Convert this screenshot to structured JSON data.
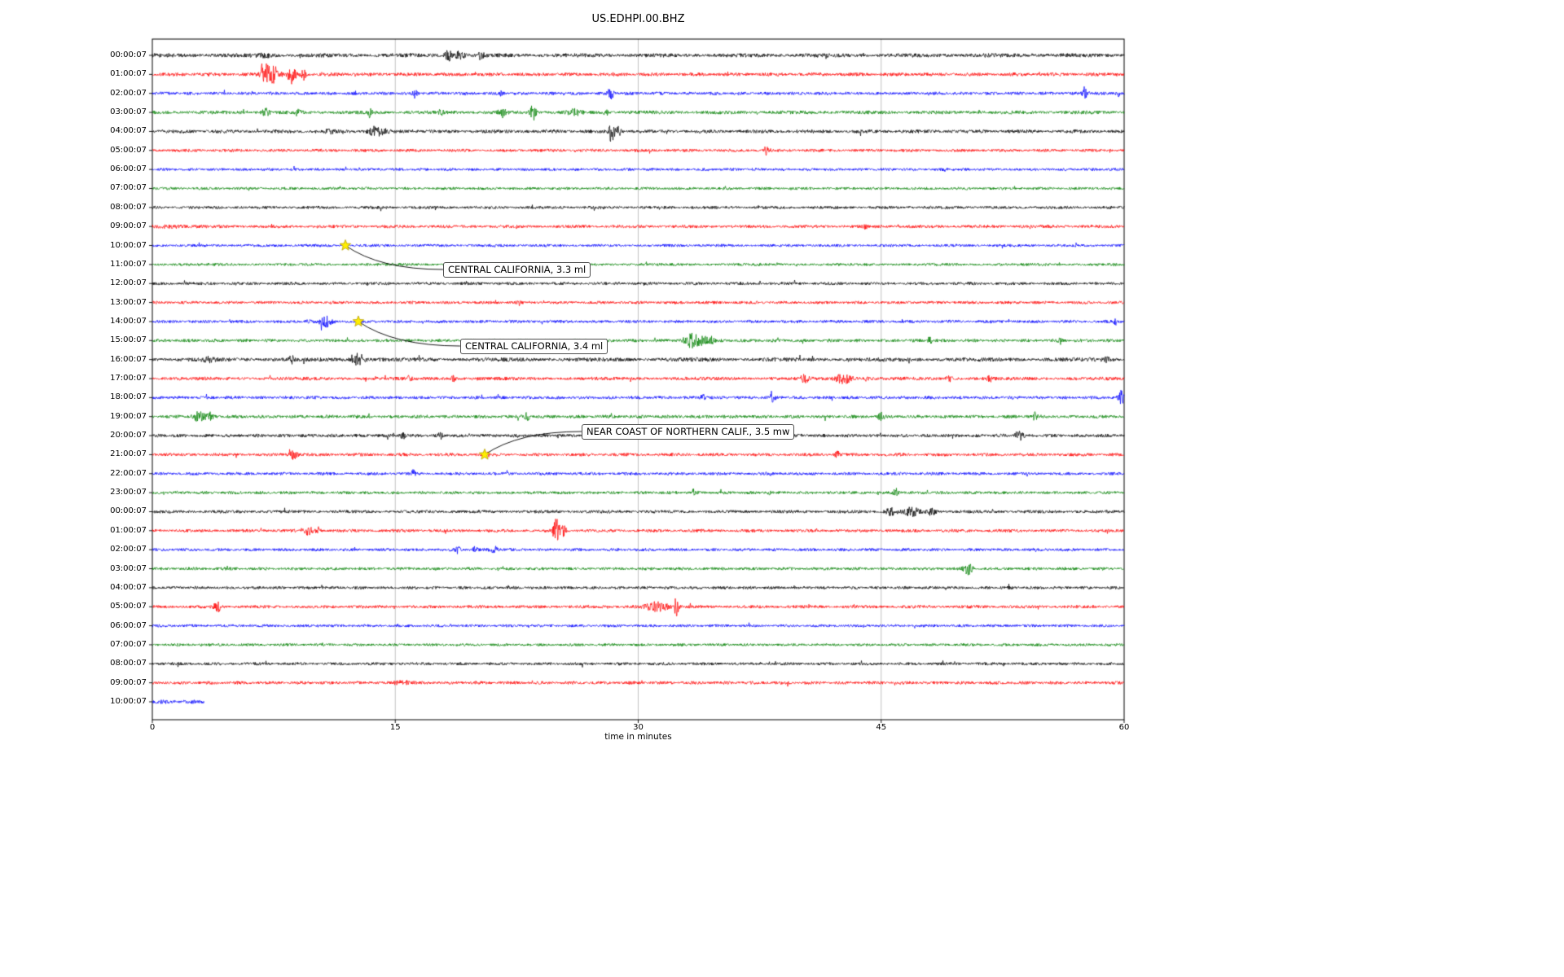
{
  "title": "US.EDHPI.00.BHZ",
  "chart_data": {
    "type": "line",
    "subtype": "seismogram-dayplot",
    "station_id": "US.EDHPI.00.BHZ",
    "xlabel": "time in minutes",
    "xlim": [
      0,
      60
    ],
    "x_ticks": [
      0,
      15,
      30,
      45,
      60
    ],
    "row_interval_minutes": 60,
    "grid": "vertical-only",
    "trace_colors_cycle": [
      "#000000",
      "#ff0000",
      "#0000ff",
      "#008000"
    ],
    "rows": [
      {
        "label": "00:00:07",
        "amp": 2.0
      },
      {
        "label": "01:00:07",
        "amp": 1.8
      },
      {
        "label": "02:00:07",
        "amp": 1.6
      },
      {
        "label": "03:00:07",
        "amp": 1.8
      },
      {
        "label": "04:00:07",
        "amp": 1.8
      },
      {
        "label": "05:00:07",
        "amp": 1.5
      },
      {
        "label": "06:00:07",
        "amp": 1.4
      },
      {
        "label": "07:00:07",
        "amp": 1.4
      },
      {
        "label": "08:00:07",
        "amp": 1.5
      },
      {
        "label": "09:00:07",
        "amp": 1.6
      },
      {
        "label": "10:00:07",
        "amp": 1.4
      },
      {
        "label": "11:00:07",
        "amp": 1.4
      },
      {
        "label": "12:00:07",
        "amp": 1.5
      },
      {
        "label": "13:00:07",
        "amp": 1.5
      },
      {
        "label": "14:00:07",
        "amp": 1.5
      },
      {
        "label": "15:00:07",
        "amp": 1.6
      },
      {
        "label": "16:00:07",
        "amp": 2.0
      },
      {
        "label": "17:00:07",
        "amp": 1.7
      },
      {
        "label": "18:00:07",
        "amp": 1.6
      },
      {
        "label": "19:00:07",
        "amp": 1.7
      },
      {
        "label": "20:00:07",
        "amp": 1.7
      },
      {
        "label": "21:00:07",
        "amp": 1.6
      },
      {
        "label": "22:00:07",
        "amp": 1.5
      },
      {
        "label": "23:00:07",
        "amp": 1.5
      },
      {
        "label": "00:00:07",
        "amp": 1.6
      },
      {
        "label": "01:00:07",
        "amp": 1.6
      },
      {
        "label": "02:00:07",
        "amp": 1.5
      },
      {
        "label": "03:00:07",
        "amp": 1.5
      },
      {
        "label": "04:00:07",
        "amp": 1.5
      },
      {
        "label": "05:00:07",
        "amp": 1.6
      },
      {
        "label": "06:00:07",
        "amp": 1.4
      },
      {
        "label": "07:00:07",
        "amp": 1.4
      },
      {
        "label": "08:00:07",
        "amp": 1.5
      },
      {
        "label": "09:00:07",
        "amp": 1.6
      },
      {
        "label": "10:00:07",
        "amp": 2.0,
        "end_min": 3.2
      }
    ],
    "events": [
      {
        "r": 0,
        "c": 18.3,
        "s": 0.15,
        "a": 7
      },
      {
        "r": 0,
        "c": 19.0,
        "s": 0.2,
        "a": 5
      },
      {
        "r": 0,
        "c": 20.3,
        "s": 0.1,
        "a": 5
      },
      {
        "r": 0,
        "c": 7.0,
        "s": 0.4,
        "a": 1.5
      },
      {
        "r": 1,
        "c": 6.9,
        "s": 0.12,
        "a": 18
      },
      {
        "r": 1,
        "c": 7.35,
        "s": 0.3,
        "a": 13
      },
      {
        "r": 1,
        "c": 8.6,
        "s": 0.18,
        "a": 10
      },
      {
        "r": 1,
        "c": 9.35,
        "s": 0.1,
        "a": 6
      },
      {
        "r": 2,
        "c": 16.2,
        "s": 0.08,
        "a": 6
      },
      {
        "r": 2,
        "c": 28.3,
        "s": 0.12,
        "a": 7
      },
      {
        "r": 2,
        "c": 57.6,
        "s": 0.12,
        "a": 9
      },
      {
        "r": 2,
        "c": 59.6,
        "s": 0.08,
        "a": 4
      },
      {
        "r": 2,
        "c": 21.5,
        "s": 0.1,
        "a": 3
      },
      {
        "r": 3,
        "c": 7.0,
        "s": 0.15,
        "a": 5
      },
      {
        "r": 3,
        "c": 9.0,
        "s": 0.1,
        "a": 4
      },
      {
        "r": 3,
        "c": 13.4,
        "s": 0.1,
        "a": 5
      },
      {
        "r": 3,
        "c": 17.8,
        "s": 0.1,
        "a": 3
      },
      {
        "r": 3,
        "c": 21.6,
        "s": 0.15,
        "a": 5
      },
      {
        "r": 3,
        "c": 23.5,
        "s": 0.12,
        "a": 10
      },
      {
        "r": 3,
        "c": 26.1,
        "s": 0.3,
        "a": 3
      },
      {
        "r": 3,
        "c": 28.0,
        "s": 0.1,
        "a": 4
      },
      {
        "r": 4,
        "c": 13.9,
        "s": 0.35,
        "a": 6
      },
      {
        "r": 4,
        "c": 28.35,
        "s": 0.1,
        "a": 13
      },
      {
        "r": 4,
        "c": 28.7,
        "s": 0.15,
        "a": 7
      },
      {
        "r": 4,
        "c": 11.0,
        "s": 0.2,
        "a": 2
      },
      {
        "r": 5,
        "c": 37.9,
        "s": 0.07,
        "a": 6
      },
      {
        "r": 6,
        "c": 49.0,
        "s": 0.1,
        "a": 2
      },
      {
        "r": 9,
        "c": 1.5,
        "s": 0.8,
        "a": 1
      },
      {
        "r": 9,
        "c": 44.0,
        "s": 0.1,
        "a": 2
      },
      {
        "r": 13,
        "c": 22.6,
        "s": 0.08,
        "a": 3
      },
      {
        "r": 14,
        "c": 10.7,
        "s": 0.25,
        "a": 6
      },
      {
        "r": 14,
        "c": 9.6,
        "s": 0.1,
        "a": 3
      },
      {
        "r": 14,
        "c": 59.5,
        "s": 0.1,
        "a": 3
      },
      {
        "r": 15,
        "c": 33.4,
        "s": 0.45,
        "a": 8
      },
      {
        "r": 15,
        "c": 34.4,
        "s": 0.3,
        "a": 4
      },
      {
        "r": 15,
        "c": 48.0,
        "s": 0.12,
        "a": 4
      },
      {
        "r": 15,
        "c": 56.1,
        "s": 0.1,
        "a": 4
      },
      {
        "r": 16,
        "c": 12.7,
        "s": 0.25,
        "a": 8
      },
      {
        "r": 16,
        "c": 8.6,
        "s": 0.12,
        "a": 4
      },
      {
        "r": 16,
        "c": 3.5,
        "s": 0.3,
        "a": 2
      },
      {
        "r": 16,
        "c": 59.0,
        "s": 0.15,
        "a": 3
      },
      {
        "r": 17,
        "c": 15.9,
        "s": 0.08,
        "a": 4
      },
      {
        "r": 17,
        "c": 18.6,
        "s": 0.1,
        "a": 4
      },
      {
        "r": 17,
        "c": 40.3,
        "s": 0.2,
        "a": 4
      },
      {
        "r": 17,
        "c": 42.7,
        "s": 0.35,
        "a": 6
      },
      {
        "r": 17,
        "c": 44.1,
        "s": 0.1,
        "a": 3
      },
      {
        "r": 17,
        "c": 49.2,
        "s": 0.12,
        "a": 5
      },
      {
        "r": 17,
        "c": 51.7,
        "s": 0.1,
        "a": 4
      },
      {
        "r": 18,
        "c": 34.0,
        "s": 0.12,
        "a": 4
      },
      {
        "r": 18,
        "c": 38.3,
        "s": 0.12,
        "a": 4
      },
      {
        "r": 18,
        "c": 59.85,
        "s": 0.12,
        "a": 8
      },
      {
        "r": 19,
        "c": 2.9,
        "s": 0.3,
        "a": 5
      },
      {
        "r": 19,
        "c": 3.6,
        "s": 0.15,
        "a": 4
      },
      {
        "r": 19,
        "c": 23.15,
        "s": 0.08,
        "a": 9
      },
      {
        "r": 19,
        "c": 45.0,
        "s": 0.12,
        "a": 4
      },
      {
        "r": 19,
        "c": 54.5,
        "s": 0.12,
        "a": 6
      },
      {
        "r": 20,
        "c": 15.45,
        "s": 0.1,
        "a": 5
      },
      {
        "r": 20,
        "c": 17.8,
        "s": 0.1,
        "a": 3
      },
      {
        "r": 20,
        "c": 53.5,
        "s": 0.15,
        "a": 7
      },
      {
        "r": 20,
        "c": 35.2,
        "s": 0.1,
        "a": 3
      },
      {
        "r": 21,
        "c": 8.7,
        "s": 0.18,
        "a": 5
      },
      {
        "r": 21,
        "c": 42.3,
        "s": 0.1,
        "a": 4
      },
      {
        "r": 21,
        "c": 20.65,
        "s": 0.12,
        "a": 2
      },
      {
        "r": 22,
        "c": 16.1,
        "s": 0.08,
        "a": 6
      },
      {
        "r": 22,
        "c": 38.1,
        "s": 0.1,
        "a": 3
      },
      {
        "r": 23,
        "c": 33.5,
        "s": 0.12,
        "a": 5
      },
      {
        "r": 23,
        "c": 38.1,
        "s": 0.08,
        "a": 3
      },
      {
        "r": 23,
        "c": 45.9,
        "s": 0.12,
        "a": 5
      },
      {
        "r": 24,
        "c": 45.6,
        "s": 0.25,
        "a": 4
      },
      {
        "r": 24,
        "c": 46.9,
        "s": 0.3,
        "a": 5
      },
      {
        "r": 24,
        "c": 48.1,
        "s": 0.18,
        "a": 4
      },
      {
        "r": 25,
        "c": 9.65,
        "s": 0.18,
        "a": 5
      },
      {
        "r": 25,
        "c": 10.25,
        "s": 0.1,
        "a": 4
      },
      {
        "r": 25,
        "c": 24.95,
        "s": 0.15,
        "a": 14
      },
      {
        "r": 25,
        "c": 25.4,
        "s": 0.1,
        "a": 7
      },
      {
        "r": 26,
        "c": 18.85,
        "s": 0.1,
        "a": 4
      },
      {
        "r": 26,
        "c": 19.9,
        "s": 0.1,
        "a": 3
      },
      {
        "r": 26,
        "c": 21.1,
        "s": 0.18,
        "a": 4
      },
      {
        "r": 27,
        "c": 50.35,
        "s": 0.18,
        "a": 8
      },
      {
        "r": 29,
        "c": 4.0,
        "s": 0.15,
        "a": 6
      },
      {
        "r": 29,
        "c": 31.2,
        "s": 0.5,
        "a": 5
      },
      {
        "r": 29,
        "c": 32.35,
        "s": 0.1,
        "a": 10
      },
      {
        "r": 33,
        "c": 15.5,
        "s": 0.4,
        "a": 2
      }
    ],
    "annotations": [
      {
        "label": "CENTRAL CALIFORNIA, 3.3 ml",
        "row": 10,
        "minute": 11.92,
        "box_x": 544,
        "box_y": 322
      },
      {
        "label": "CENTRAL CALIFORNIA, 3.4 ml",
        "row": 14,
        "minute": 12.72,
        "box_x": 565,
        "box_y": 416
      },
      {
        "label": "NEAR COAST OF NORTHERN CALIF., 3.5 mw",
        "row": 21,
        "minute": 20.52,
        "box_x": 714,
        "box_y": 521
      }
    ],
    "marker": {
      "shape": "star",
      "fill": "#ffee00",
      "edge": "#b8a000"
    },
    "legend": "none"
  }
}
